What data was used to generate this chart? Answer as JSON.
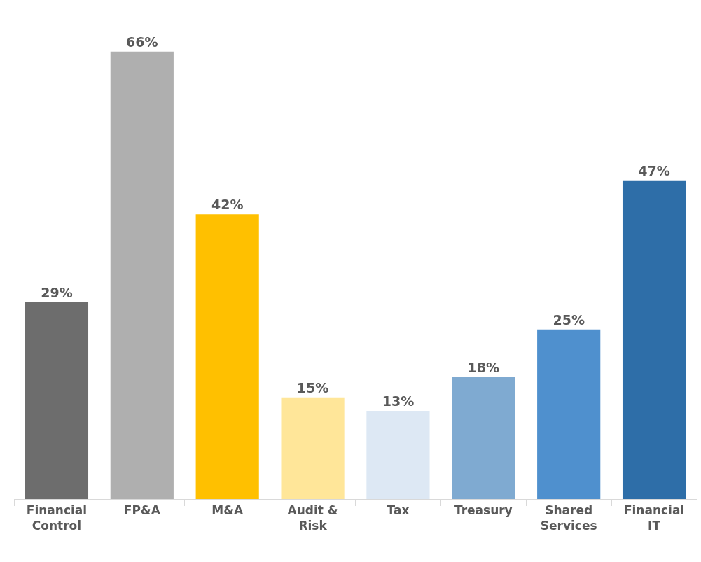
{
  "chart_data": {
    "type": "bar",
    "categories": [
      "Financial Control",
      "FP&A",
      "M&A",
      "Audit & Risk",
      "Tax",
      "Treasury",
      "Shared Services",
      "Financial IT"
    ],
    "values": [
      29,
      66,
      42,
      15,
      13,
      18,
      25,
      47
    ],
    "colors": [
      "#6d6d6d",
      "#afafaf",
      "#ffc000",
      "#ffe699",
      "#dde8f4",
      "#7faad1",
      "#4f90ce",
      "#2e6ea8"
    ],
    "value_labels": [
      "29%",
      "66%",
      "42%",
      "15%",
      "13%",
      "18%",
      "25%",
      "47%"
    ]
  }
}
